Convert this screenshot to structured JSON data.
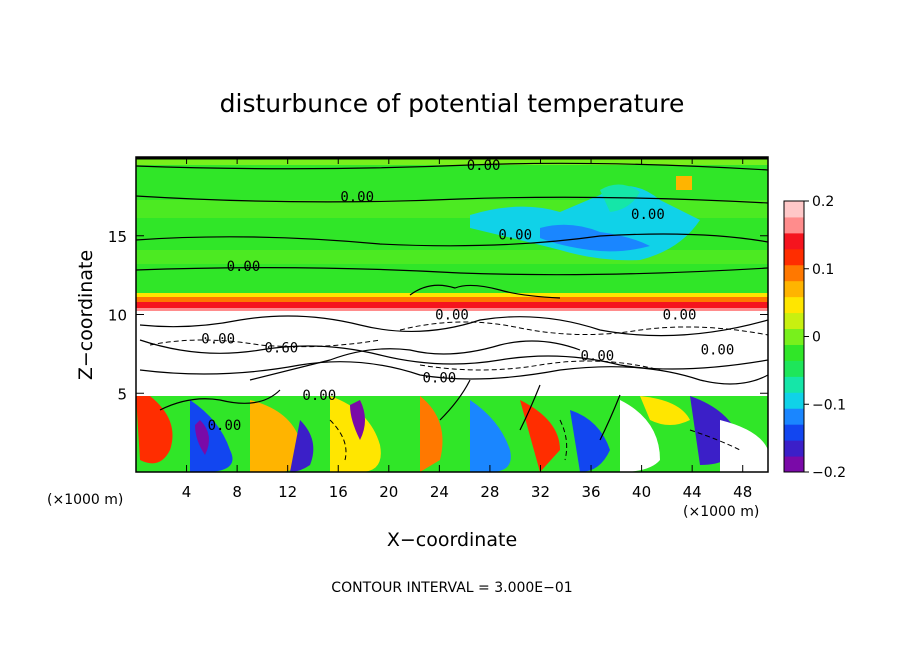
{
  "chart_data": {
    "type": "heatmap",
    "title": "disturbunce of potential temperature",
    "xlabel": "X−coordinate",
    "ylabel": "Z−coordinate",
    "x_unit_label": "(×1000 m)",
    "z_unit_label": "(×1000 m)",
    "xlim": [
      0,
      50
    ],
    "ylim": [
      0,
      20
    ],
    "x_ticks": [
      4,
      8,
      12,
      16,
      20,
      24,
      28,
      32,
      36,
      40,
      44,
      48
    ],
    "y_ticks": [
      5,
      10,
      15
    ],
    "contour_note": "CONTOUR INTERVAL = 3.000E−01",
    "colorbar": {
      "range": [
        -0.2,
        0.2
      ],
      "tick_values": [
        0.2,
        0.1,
        0,
        -0.1,
        -0.2
      ],
      "tick_labels": [
        "0.2",
        "0.1",
        "0",
        "−0.1",
        "−0.2"
      ],
      "colors": [
        "#7a0aa8",
        "#3b1fc8",
        "#1246f0",
        "#1a86ff",
        "#10d2e8",
        "#15e6a8",
        "#1ee65a",
        "#30e628",
        "#78f01c",
        "#c8f010",
        "#ffe600",
        "#ffb400",
        "#ff7800",
        "#ff2d00",
        "#f5141e",
        "#ff8c8c",
        "#ffc8c8"
      ]
    },
    "contour_labels": [
      {
        "text": "0.00",
        "x": 27.5,
        "z": 19.3
      },
      {
        "text": "0.00",
        "x": 17.5,
        "z": 17.3
      },
      {
        "text": "0.00",
        "x": 40.5,
        "z": 16.2
      },
      {
        "text": "0.00",
        "x": 30.0,
        "z": 14.9
      },
      {
        "text": "0.00",
        "x": 8.5,
        "z": 12.9
      },
      {
        "text": "0.00",
        "x": 25.0,
        "z": 9.8
      },
      {
        "text": "0.00",
        "x": 43.0,
        "z": 9.8
      },
      {
        "text": "0.00",
        "x": 6.5,
        "z": 8.3
      },
      {
        "text": "0.60",
        "x": 11.5,
        "z": 7.7
      },
      {
        "text": "0.00",
        "x": 36.5,
        "z": 7.2
      },
      {
        "text": "0.00",
        "x": 46.0,
        "z": 7.6
      },
      {
        "text": "0.00",
        "x": 24.0,
        "z": 5.8
      },
      {
        "text": "0.00",
        "x": 14.5,
        "z": 4.7
      },
      {
        "text": "0.00",
        "x": 7.0,
        "z": 2.8
      }
    ],
    "grid": false
  }
}
